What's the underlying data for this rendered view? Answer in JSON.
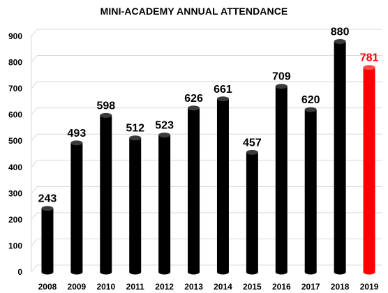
{
  "chart_data": {
    "type": "bar",
    "title": "MINI-ACADEMY ANNUAL ATTENDANCE",
    "xlabel": "",
    "ylabel": "",
    "categories": [
      "2008",
      "2009",
      "2010",
      "2011",
      "2012",
      "2013",
      "2014",
      "2015",
      "2016",
      "2017",
      "2018",
      "2019"
    ],
    "values": [
      243,
      493,
      598,
      512,
      523,
      626,
      661,
      457,
      709,
      620,
      880,
      781
    ],
    "ylim": [
      0,
      900
    ],
    "yticks": [
      0,
      100,
      200,
      300,
      400,
      500,
      600,
      700,
      800,
      900
    ],
    "grid": true,
    "legend": "none",
    "colors": {
      "default": "#000000",
      "highlight": "#ff0000",
      "grid": "#d9d9d9"
    },
    "highlight_index": 11
  }
}
